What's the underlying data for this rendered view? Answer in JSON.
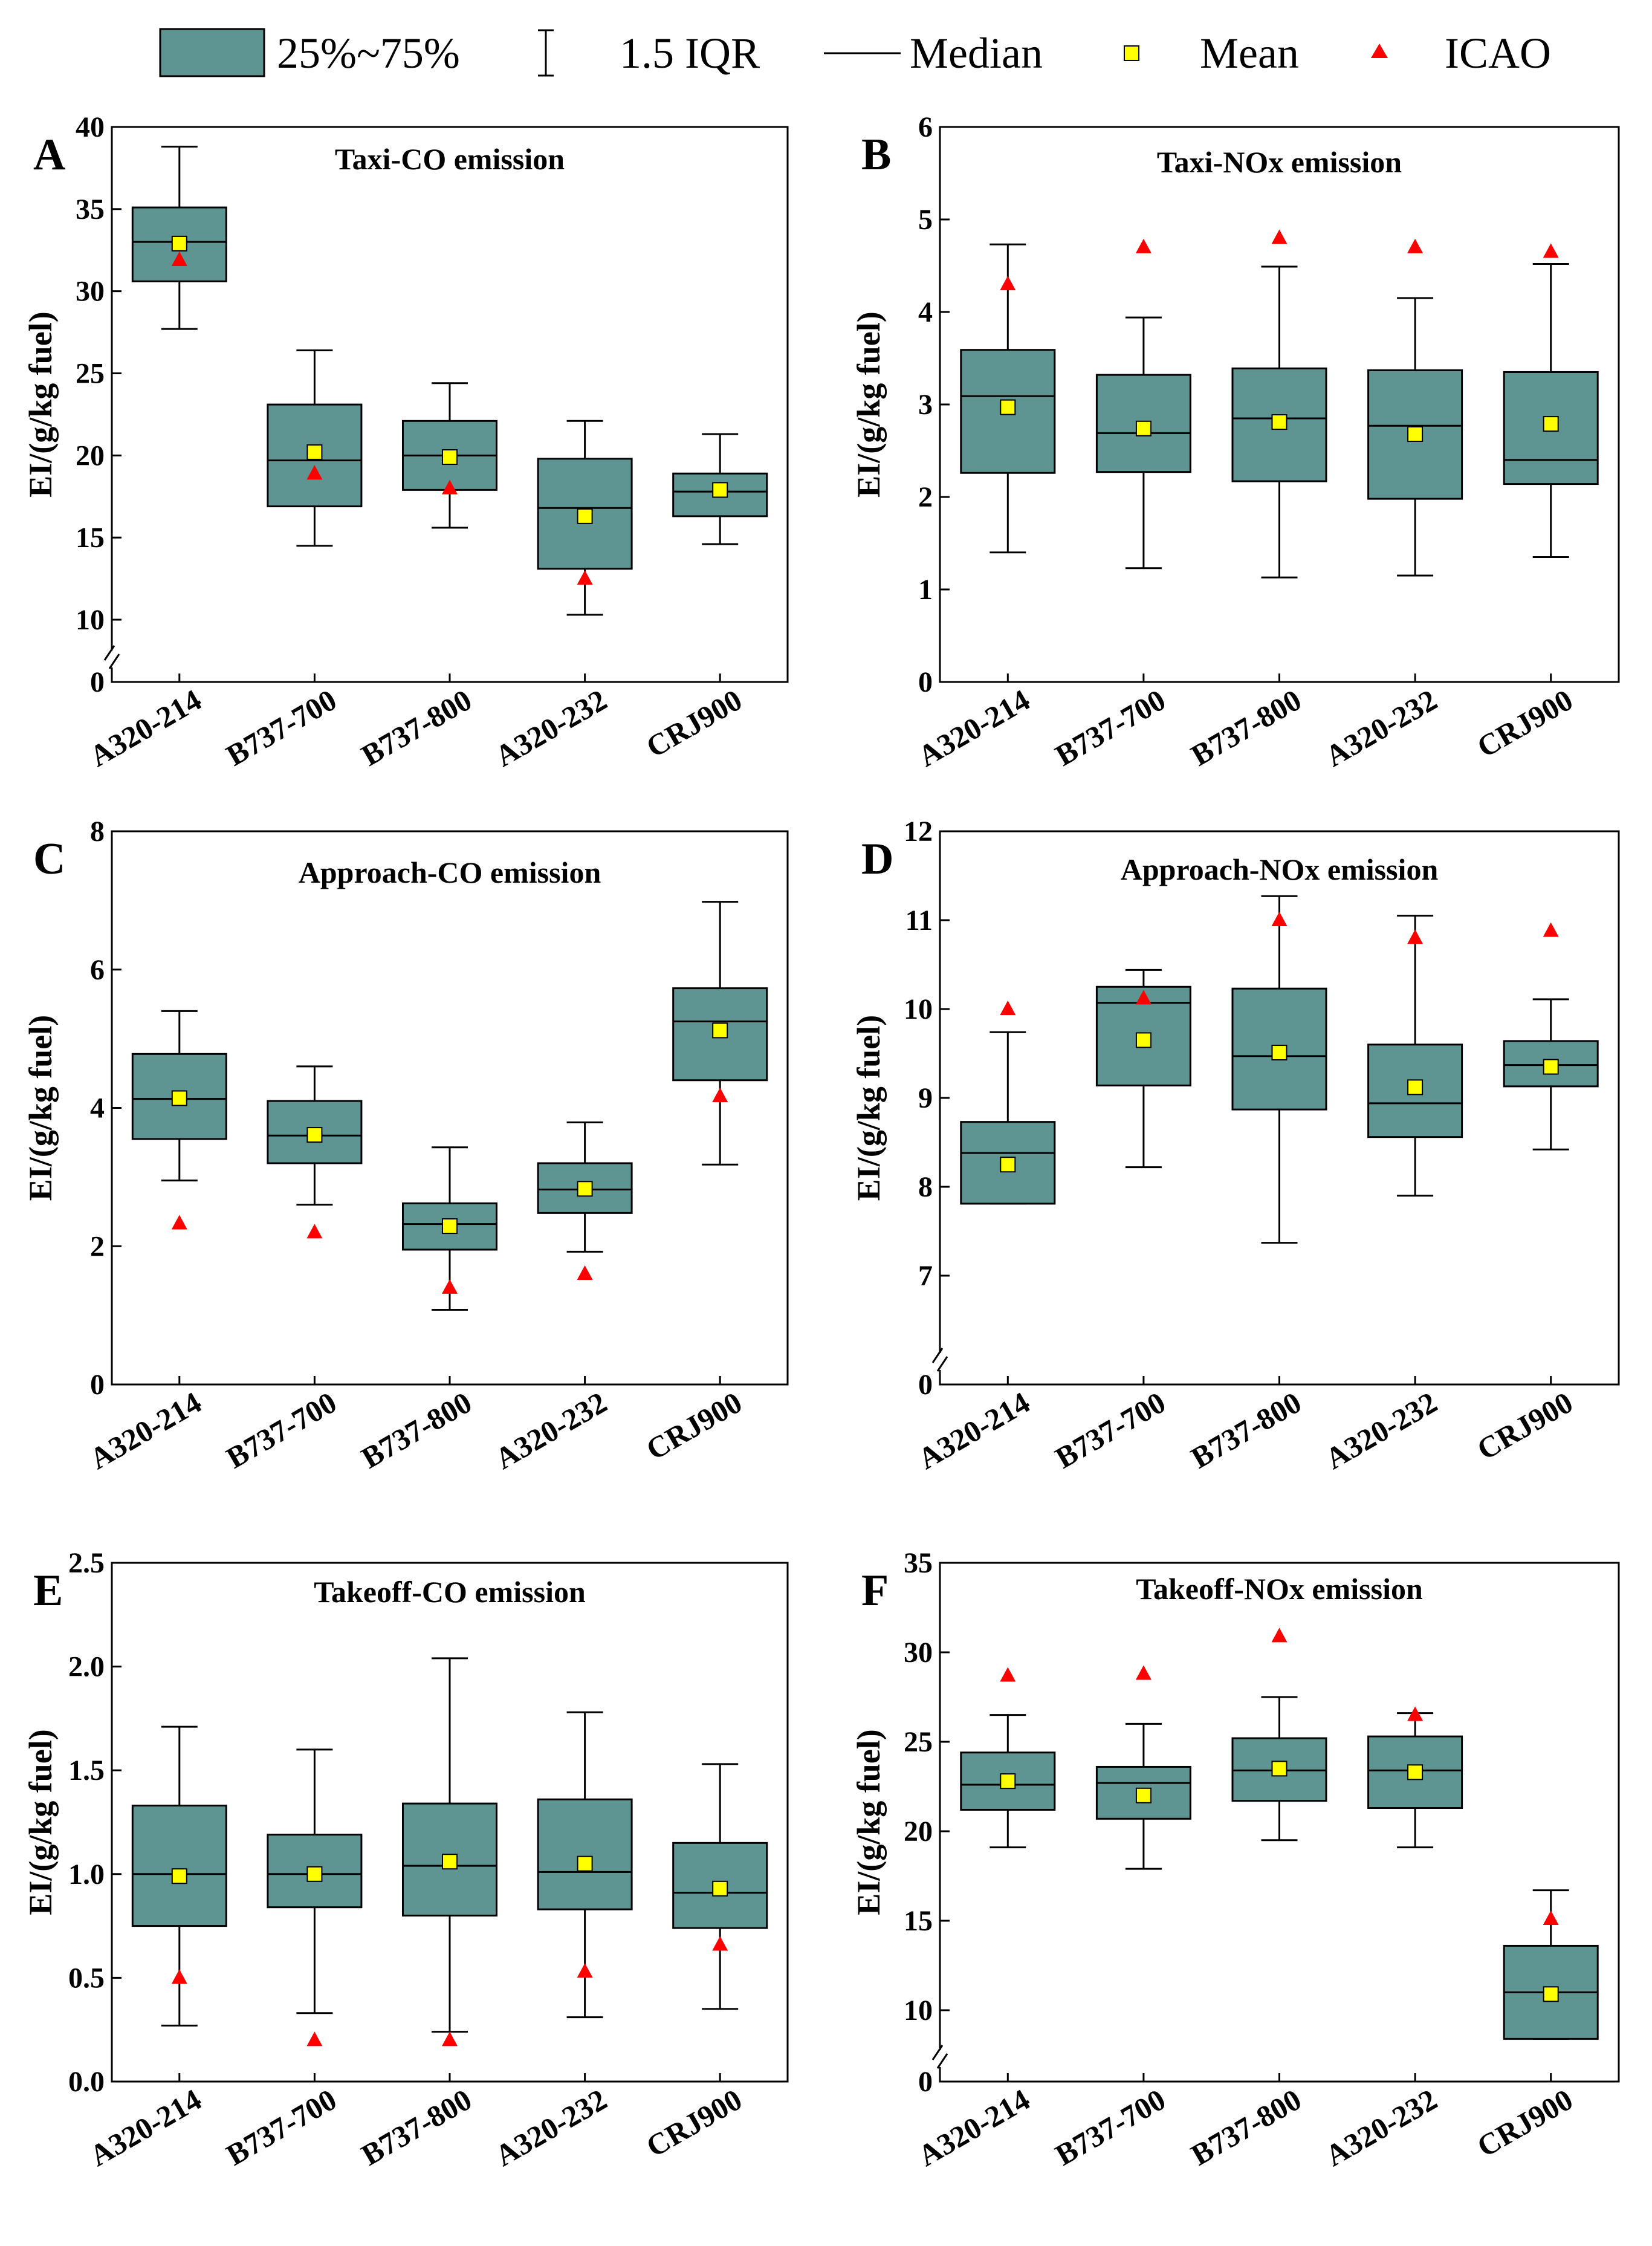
{
  "colors": {
    "box_fill": "#5e9491",
    "mean_fill": "#ffff00",
    "icao_fill": "#ff0000",
    "stroke": "#000000"
  },
  "legend": {
    "box_label": "25%~75%",
    "iqr_label": "1.5 IQR",
    "median_label": "Median",
    "mean_label": "Mean",
    "icao_label": "ICAO"
  },
  "chart_data": [
    {
      "id": "A",
      "type": "box",
      "title": "Taxi-CO emission",
      "ylabel": "EI/(g/kg fuel)",
      "categories": [
        "A320-214",
        "B737-700",
        "B737-800",
        "A320-232",
        "CRJ900"
      ],
      "yticks": [
        0,
        10,
        15,
        20,
        25,
        30,
        35,
        40
      ],
      "ylim": [
        0,
        40
      ],
      "axis_break": {
        "from": 0,
        "to": 8
      },
      "boxes": [
        {
          "whisker_low": 27.7,
          "q1": 30.6,
          "median": 33.0,
          "q3": 35.1,
          "whisker_high": 38.8,
          "mean": 32.9,
          "icao": 31.9
        },
        {
          "whisker_low": 14.5,
          "q1": 16.9,
          "median": 19.7,
          "q3": 23.1,
          "whisker_high": 26.4,
          "mean": 20.2,
          "icao": 18.9
        },
        {
          "whisker_low": 15.6,
          "q1": 17.9,
          "median": 20.0,
          "q3": 22.1,
          "whisker_high": 24.4,
          "mean": 19.9,
          "icao": 18.0
        },
        {
          "whisker_low": 10.3,
          "q1": 13.1,
          "median": 16.8,
          "q3": 19.8,
          "whisker_high": 22.1,
          "mean": 16.3,
          "icao": 12.5
        },
        {
          "whisker_low": 14.6,
          "q1": 16.3,
          "median": 17.8,
          "q3": 18.9,
          "whisker_high": 21.3,
          "mean": 17.9,
          "icao": 17.9
        }
      ]
    },
    {
      "id": "B",
      "type": "box",
      "title": "Taxi-NOx emission",
      "ylabel": "EI/(g/kg fuel)",
      "categories": [
        "A320-214",
        "B737-700",
        "B737-800",
        "A320-232",
        "CRJ900"
      ],
      "yticks": [
        0,
        1,
        2,
        3,
        4,
        5,
        6
      ],
      "ylim": [
        0,
        6
      ],
      "boxes": [
        {
          "whisker_low": 1.4,
          "q1": 2.26,
          "median": 3.09,
          "q3": 3.59,
          "whisker_high": 4.73,
          "mean": 2.97,
          "icao": 4.3
        },
        {
          "whisker_low": 1.23,
          "q1": 2.27,
          "median": 2.69,
          "q3": 3.32,
          "whisker_high": 3.94,
          "mean": 2.74,
          "icao": 4.7
        },
        {
          "whisker_low": 1.13,
          "q1": 2.17,
          "median": 2.85,
          "q3": 3.39,
          "whisker_high": 4.49,
          "mean": 2.81,
          "icao": 4.8
        },
        {
          "whisker_low": 1.15,
          "q1": 1.98,
          "median": 2.77,
          "q3": 3.37,
          "whisker_high": 4.15,
          "mean": 2.68,
          "icao": 4.7
        },
        {
          "whisker_low": 1.35,
          "q1": 2.14,
          "median": 2.4,
          "q3": 3.35,
          "whisker_high": 4.52,
          "mean": 2.79,
          "icao": 4.65
        }
      ]
    },
    {
      "id": "C",
      "type": "box",
      "title": "Approach-CO emission",
      "ylabel": "EI/(g/kg fuel)",
      "categories": [
        "A320-214",
        "B737-700",
        "B737-800",
        "A320-232",
        "CRJ900"
      ],
      "yticks": [
        0,
        2,
        4,
        6,
        8
      ],
      "ylim": [
        0,
        8
      ],
      "boxes": [
        {
          "whisker_low": 2.95,
          "q1": 3.55,
          "median": 4.13,
          "q3": 4.78,
          "whisker_high": 5.4,
          "mean": 4.14,
          "icao": 2.33
        },
        {
          "whisker_low": 2.6,
          "q1": 3.2,
          "median": 3.6,
          "q3": 4.1,
          "whisker_high": 4.6,
          "mean": 3.61,
          "icao": 2.2
        },
        {
          "whisker_low": 1.08,
          "q1": 1.95,
          "median": 2.32,
          "q3": 2.62,
          "whisker_high": 3.43,
          "mean": 2.29,
          "icao": 1.4
        },
        {
          "whisker_low": 1.92,
          "q1": 2.48,
          "median": 2.82,
          "q3": 3.2,
          "whisker_high": 3.79,
          "mean": 2.83,
          "icao": 1.6
        },
        {
          "whisker_low": 3.18,
          "q1": 4.4,
          "median": 5.25,
          "q3": 5.73,
          "whisker_high": 6.98,
          "mean": 5.12,
          "icao": 4.17
        }
      ]
    },
    {
      "id": "D",
      "type": "box",
      "title": "Approach-NOx emission",
      "ylabel": "EI/(g/kg fuel)",
      "categories": [
        "A320-214",
        "B737-700",
        "B737-800",
        "A320-232",
        "CRJ900"
      ],
      "yticks": [
        0,
        7,
        8,
        9,
        10,
        11,
        12
      ],
      "ylim": [
        0,
        12
      ],
      "axis_break": {
        "from": 0,
        "to": 6.8
      },
      "boxes": [
        {
          "whisker_low": 7.81,
          "q1": 7.81,
          "median": 8.38,
          "q3": 8.73,
          "whisker_high": 9.74,
          "mean": 8.25,
          "icao": 10.0
        },
        {
          "whisker_low": 8.22,
          "q1": 9.14,
          "median": 10.07,
          "q3": 10.25,
          "whisker_high": 10.44,
          "mean": 9.65,
          "icao": 10.12
        },
        {
          "whisker_low": 7.37,
          "q1": 8.87,
          "median": 9.47,
          "q3": 10.23,
          "whisker_high": 11.27,
          "mean": 9.51,
          "icao": 11.0
        },
        {
          "whisker_low": 7.9,
          "q1": 8.56,
          "median": 8.94,
          "q3": 9.6,
          "whisker_high": 11.05,
          "mean": 9.12,
          "icao": 10.8
        },
        {
          "whisker_low": 8.42,
          "q1": 9.13,
          "median": 9.37,
          "q3": 9.64,
          "whisker_high": 10.11,
          "mean": 9.35,
          "icao": 10.88
        }
      ]
    },
    {
      "id": "E",
      "type": "box",
      "title": "Takeoff-CO emission",
      "ylabel": "EI/(g/kg fuel)",
      "categories": [
        "A320-214",
        "B737-700",
        "B737-800",
        "A320-232",
        "CRJ900"
      ],
      "yticks": [
        0.0,
        0.5,
        1.0,
        1.5,
        2.0,
        2.5
      ],
      "ytick_labels": [
        "0.0",
        "0.5",
        "1.0",
        "1.5",
        "2.0",
        "2.5"
      ],
      "ylim": [
        0,
        2.5
      ],
      "boxes": [
        {
          "whisker_low": 0.27,
          "q1": 0.75,
          "median": 1.0,
          "q3": 1.33,
          "whisker_high": 1.71,
          "mean": 0.99,
          "icao": 0.5
        },
        {
          "whisker_low": 0.33,
          "q1": 0.84,
          "median": 1.0,
          "q3": 1.19,
          "whisker_high": 1.6,
          "mean": 1.0,
          "icao": 0.2
        },
        {
          "whisker_low": 0.24,
          "q1": 0.8,
          "median": 1.04,
          "q3": 1.34,
          "whisker_high": 2.04,
          "mean": 1.06,
          "icao": 0.2
        },
        {
          "whisker_low": 0.31,
          "q1": 0.83,
          "median": 1.01,
          "q3": 1.36,
          "whisker_high": 1.78,
          "mean": 1.05,
          "icao": 0.53
        },
        {
          "whisker_low": 0.35,
          "q1": 0.74,
          "median": 0.91,
          "q3": 1.15,
          "whisker_high": 1.53,
          "mean": 0.93,
          "icao": 0.66
        }
      ]
    },
    {
      "id": "F",
      "type": "box",
      "title": "Takeoff-NOx emission",
      "ylabel": "EI/(g/kg fuel)",
      "categories": [
        "A320-214",
        "B737-700",
        "B737-800",
        "A320-232",
        "CRJ900"
      ],
      "yticks": [
        0,
        10,
        15,
        20,
        25,
        30,
        35
      ],
      "ylim": [
        0,
        35
      ],
      "axis_break": {
        "from": 0,
        "to": 6.5
      },
      "boxes": [
        {
          "whisker_low": 19.1,
          "q1": 21.2,
          "median": 22.6,
          "q3": 24.4,
          "whisker_high": 26.5,
          "mean": 22.8,
          "icao": 28.7
        },
        {
          "whisker_low": 17.9,
          "q1": 20.7,
          "median": 22.7,
          "q3": 23.6,
          "whisker_high": 26.0,
          "mean": 22.0,
          "icao": 28.8
        },
        {
          "whisker_low": 19.5,
          "q1": 21.7,
          "median": 23.4,
          "q3": 25.2,
          "whisker_high": 27.5,
          "mean": 23.5,
          "icao": 30.9
        },
        {
          "whisker_low": 19.1,
          "q1": 21.3,
          "median": 23.4,
          "q3": 25.3,
          "whisker_high": 26.6,
          "mean": 23.3,
          "icao": 26.5
        },
        {
          "whisker_low": 8.4,
          "q1": 8.4,
          "median": 11.0,
          "q3": 13.6,
          "whisker_high": 16.7,
          "mean": 10.9,
          "icao": 15.1
        }
      ]
    }
  ]
}
